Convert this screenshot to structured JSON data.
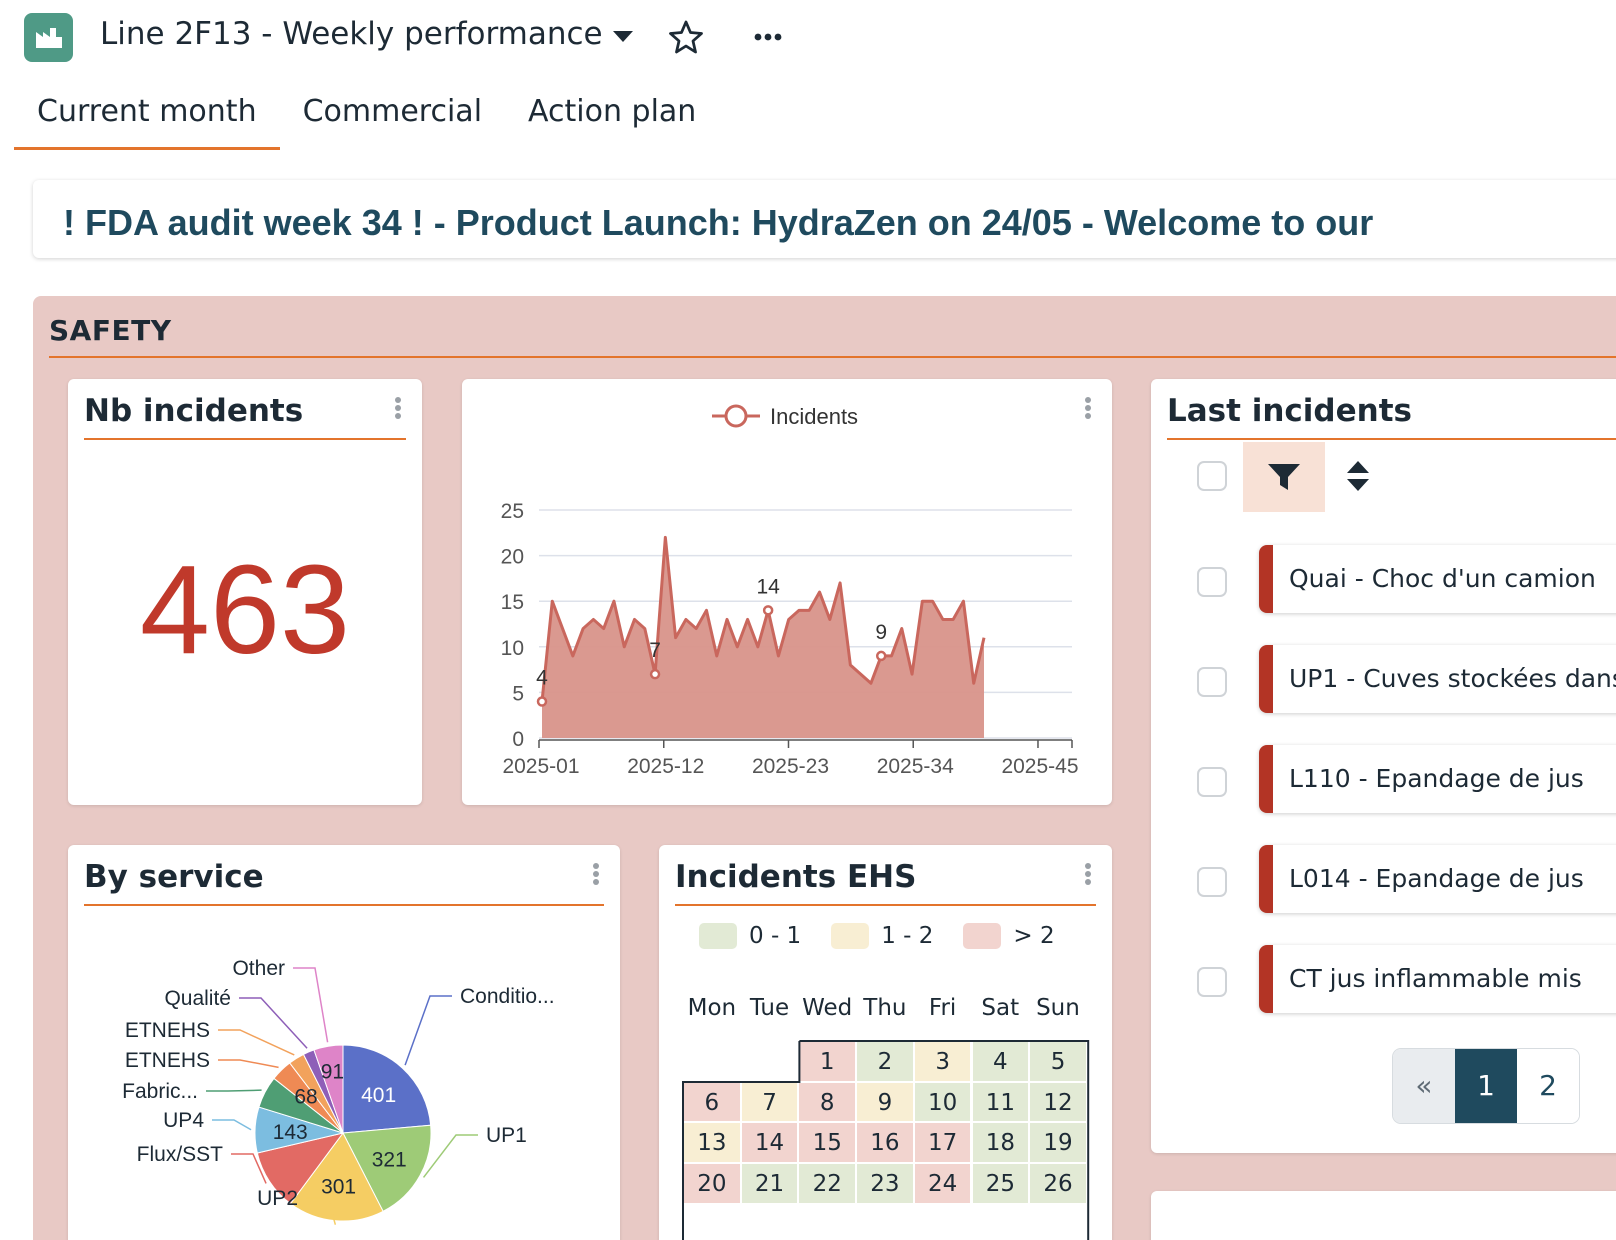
{
  "header": {
    "title": "Line 2F13 - Weekly performance",
    "app_icon": "factory-icon"
  },
  "tabs": [
    {
      "label": "Current month",
      "active": true
    },
    {
      "label": "Commercial",
      "active": false
    },
    {
      "label": "Action plan",
      "active": false
    }
  ],
  "banner": {
    "text": "! FDA audit week 34 ! - Product Launch: HydraZen on 24/05 - Welcome to our"
  },
  "section": {
    "title": "SAFETY"
  },
  "nb_incidents": {
    "title": "Nb incidents",
    "value": "463",
    "color": "#c0392b"
  },
  "incidents_chart": {
    "legend_label": "Incidents"
  },
  "by_service": {
    "title": "By service"
  },
  "incidents_ehs": {
    "title": "Incidents EHS",
    "legend": [
      {
        "label": "0 - 1",
        "color": "#e2ead5"
      },
      {
        "label": "1 - 2",
        "color": "#f8eed3"
      },
      {
        "label": "> 2",
        "color": "#f2d4cf"
      }
    ],
    "weekdays": [
      "Mon",
      "Tue",
      "Wed",
      "Thu",
      "Fri",
      "Sat",
      "Sun"
    ],
    "days": [
      {
        "d": "1",
        "level": 2
      },
      {
        "d": "2",
        "level": 0
      },
      {
        "d": "3",
        "level": 1
      },
      {
        "d": "4",
        "level": 0
      },
      {
        "d": "5",
        "level": 0
      },
      {
        "d": "6",
        "level": 2
      },
      {
        "d": "7",
        "level": 1
      },
      {
        "d": "8",
        "level": 2
      },
      {
        "d": "9",
        "level": 1
      },
      {
        "d": "10",
        "level": 0
      },
      {
        "d": "11",
        "level": 0
      },
      {
        "d": "12",
        "level": 0
      },
      {
        "d": "13",
        "level": 1
      },
      {
        "d": "14",
        "level": 2
      },
      {
        "d": "15",
        "level": 2
      },
      {
        "d": "16",
        "level": 2
      },
      {
        "d": "17",
        "level": 2
      },
      {
        "d": "18",
        "level": 0
      },
      {
        "d": "19",
        "level": 0
      },
      {
        "d": "20",
        "level": 2
      },
      {
        "d": "21",
        "level": 0
      },
      {
        "d": "22",
        "level": 0
      },
      {
        "d": "23",
        "level": 0
      },
      {
        "d": "24",
        "level": 2
      },
      {
        "d": "25",
        "level": 0
      },
      {
        "d": "26",
        "level": 0
      }
    ]
  },
  "last_incidents": {
    "title": "Last incidents",
    "items": [
      "Quai - Choc d'un camion",
      "UP1 - Cuves stockées dans",
      "L110 - Epandage de jus",
      "L014 - Epandage de jus",
      "CT jus inflammable mis"
    ],
    "pager": {
      "prev": "«",
      "pages": [
        "1",
        "2"
      ],
      "active": "1"
    }
  },
  "chart_data": [
    {
      "type": "area",
      "series": [
        {
          "name": "Incidents",
          "values": [
            4,
            15,
            12,
            9,
            12,
            13,
            12,
            15,
            10,
            13,
            12,
            7,
            22,
            11,
            13,
            12,
            14,
            9,
            13,
            10,
            13,
            10,
            14,
            9,
            13,
            14,
            14,
            16,
            13,
            17,
            8,
            7,
            6,
            9,
            9,
            12,
            7,
            15,
            15,
            13,
            13,
            15,
            6,
            11
          ],
          "labels": {
            "0": "4",
            "11": "7",
            "22": "14",
            "33": "9"
          }
        }
      ],
      "x_tick_labels": [
        "2025-01",
        "2025-12",
        "2025-23",
        "2025-34",
        "2025-45"
      ],
      "yticks": [
        0,
        5,
        10,
        15,
        20,
        25
      ],
      "ylim": [
        0,
        25
      ],
      "color": "#c9675d",
      "fill": "#d8938a",
      "legend": "top-center",
      "grid": true
    },
    {
      "type": "pie",
      "slices": [
        {
          "label": "Conditio...",
          "value": 401,
          "color": "#5b70c8"
        },
        {
          "label": "UP1",
          "value": 321,
          "color": "#9ecb77"
        },
        {
          "label": "UP2",
          "value": 301,
          "color": "#f5cd63"
        },
        {
          "label": "Flux/SST",
          "value": 190,
          "color": "#e26a64"
        },
        {
          "label": "UP4",
          "value": 143,
          "color": "#7cbde0"
        },
        {
          "label": "Fabric...",
          "value": 100,
          "color": "#4f9e74"
        },
        {
          "label": "ETNEHS",
          "value": 68,
          "color": "#ef8a54"
        },
        {
          "label": "ETNEHS",
          "value": 50,
          "color": "#f2a25c"
        },
        {
          "label": "Qualité",
          "value": 35,
          "color": "#8e5fb8"
        },
        {
          "label": "Other",
          "value": 91,
          "color": "#de84c8"
        }
      ],
      "shown_values": [
        "401",
        "321",
        "301",
        "143",
        "68",
        "91"
      ]
    }
  ]
}
